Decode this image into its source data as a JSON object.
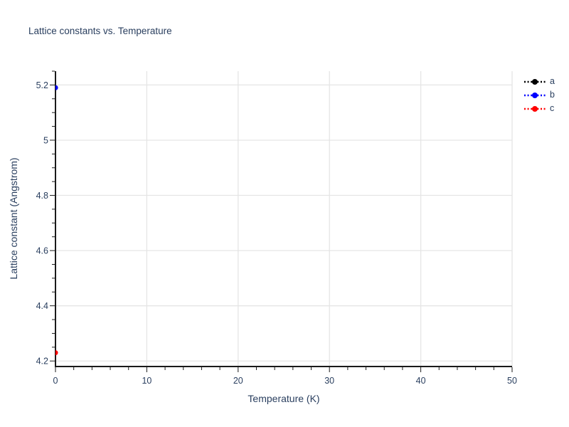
{
  "chart_data": {
    "type": "scatter",
    "title": "Lattice constants vs. Temperature",
    "xlabel": "Temperature (K)",
    "ylabel": "Lattice constant (Angstrom)",
    "xlim": [
      0,
      50
    ],
    "ylim": [
      4.18,
      5.25
    ],
    "x_ticks": [
      0,
      10,
      20,
      30,
      40,
      50
    ],
    "x_tick_labels": [
      "0",
      "10",
      "20",
      "30",
      "40",
      "50"
    ],
    "y_ticks": [
      4.2,
      4.4,
      4.6,
      4.8,
      5.0,
      5.2
    ],
    "y_tick_labels": [
      "4.2",
      "4.4",
      "4.6",
      "4.8",
      "5",
      "5.2"
    ],
    "x_minor_tick_step": 2,
    "y_minor_tick_step": 0.05,
    "grid": true,
    "legend_position": "outside-top-right",
    "line_style": "dotted",
    "marker": "circle",
    "series": [
      {
        "name": "a",
        "color": "#000000",
        "points": [
          {
            "x": 0,
            "y": 5.19
          }
        ],
        "note": "coincides with series b, hidden behind its marker"
      },
      {
        "name": "b",
        "color": "#0000ff",
        "points": [
          {
            "x": 0,
            "y": 5.19
          }
        ]
      },
      {
        "name": "c",
        "color": "#ff0000",
        "points": [
          {
            "x": 0,
            "y": 4.23
          }
        ]
      }
    ],
    "colors": {
      "text": "#2a3f5f",
      "grid": "#e5e5e5",
      "axis": "#1a1a1a",
      "background": "#ffffff"
    }
  }
}
